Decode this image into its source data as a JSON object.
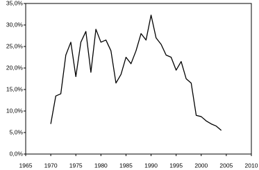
{
  "chart_data": {
    "type": "line",
    "x": [
      1970,
      1971,
      1972,
      1973,
      1974,
      1975,
      1976,
      1977,
      1978,
      1979,
      1980,
      1981,
      1982,
      1983,
      1984,
      1985,
      1986,
      1987,
      1988,
      1989,
      1990,
      1991,
      1992,
      1993,
      1994,
      1995,
      1996,
      1997,
      1998,
      1999,
      2000,
      2001,
      2002,
      2003,
      2004
    ],
    "values": [
      7,
      13.5,
      14,
      23,
      26,
      18,
      26,
      28.5,
      19,
      29,
      26,
      26.5,
      24,
      16.5,
      18.5,
      22.5,
      21,
      24,
      28,
      26.5,
      32.3,
      27,
      25.5,
      23,
      22.5,
      19.5,
      21.5,
      17.5,
      16.5,
      9,
      8.7,
      7.7,
      7,
      6.5,
      5.5
    ],
    "color": "#000000",
    "xlim": [
      1965,
      2010
    ],
    "xticks": [
      1965,
      1970,
      1975,
      1980,
      1985,
      1990,
      1995,
      2000,
      2005,
      2010
    ],
    "ylim": [
      0,
      35
    ],
    "yticks": [
      {
        "value": 0,
        "label": "0,0%"
      },
      {
        "value": 5,
        "label": "5,0%"
      },
      {
        "value": 10,
        "label": "10,0%"
      },
      {
        "value": 15,
        "label": "15,0%"
      },
      {
        "value": 20,
        "label": "20,0%"
      },
      {
        "value": 25,
        "label": "25,0%"
      },
      {
        "value": 30,
        "label": "30,0%"
      },
      {
        "value": 35,
        "label": "35,0%"
      }
    ],
    "grid": false
  }
}
